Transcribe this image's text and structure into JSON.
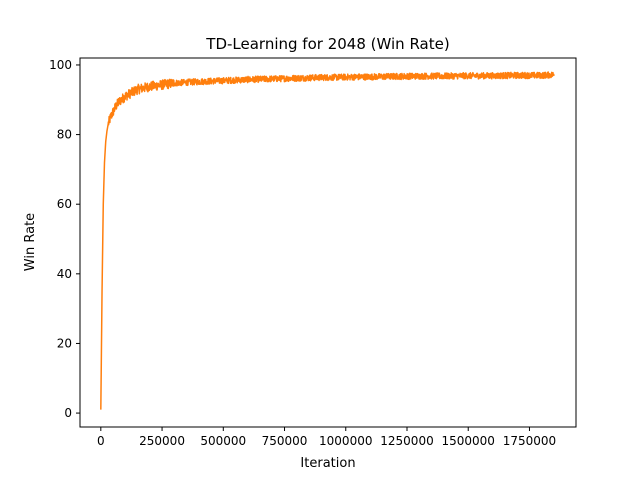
{
  "chart_data": {
    "type": "line",
    "title": "TD-Learning for 2048 (Win Rate)",
    "xlabel": "Iteration",
    "ylabel": "Win Rate",
    "xlim": [
      -85000,
      1940000
    ],
    "ylim": [
      -4,
      102
    ],
    "xticks": [
      0,
      250000,
      500000,
      750000,
      1000000,
      1250000,
      1500000,
      1750000
    ],
    "xtick_labels": [
      "0",
      "250000",
      "500000",
      "750000",
      "1000000",
      "1250000",
      "1500000",
      "1750000"
    ],
    "yticks": [
      0,
      20,
      40,
      60,
      80,
      100
    ],
    "ytick_labels": [
      "0",
      "20",
      "40",
      "60",
      "80",
      "100"
    ],
    "grid": false,
    "legend": "none",
    "series": [
      {
        "color": "#ff7f0e",
        "x": [
          0,
          5000,
          10000,
          15000,
          20000,
          25000,
          30000,
          40000,
          50000,
          60000,
          75000,
          100000,
          125000,
          150000,
          200000,
          250000,
          300000,
          400000,
          500000,
          600000,
          700000,
          800000,
          900000,
          1000000,
          1100000,
          1200000,
          1300000,
          1400000,
          1500000,
          1600000,
          1700000,
          1800000,
          1850000
        ],
        "y": [
          1,
          35,
          60,
          72,
          78,
          81,
          83,
          85,
          86.5,
          88,
          89.5,
          91,
          92,
          93,
          93.8,
          94.3,
          94.8,
          95.2,
          95.5,
          95.8,
          96,
          96.2,
          96.4,
          96.5,
          96.6,
          96.7,
          96.8,
          96.8,
          96.9,
          96.9,
          97,
          97,
          97.2
        ]
      }
    ]
  }
}
